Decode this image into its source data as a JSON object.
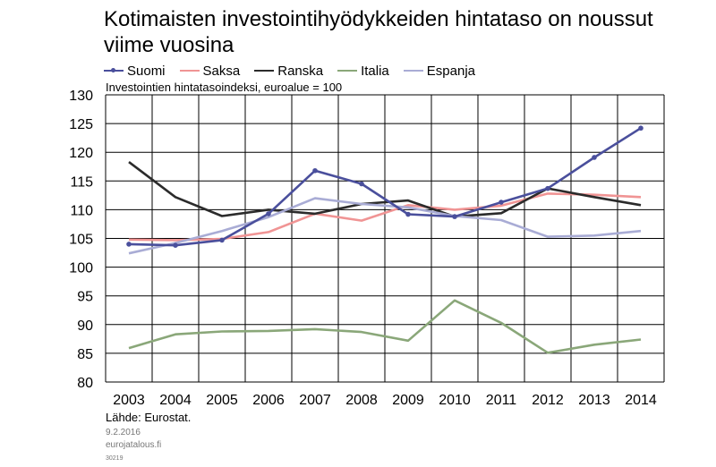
{
  "title": "Kotimaisten investointihyödykkeiden hintataso on noussut viime vuosina",
  "subtitle": "Investointien hintatasoindeksi, euroalue = 100",
  "source": "Lähde: Eurostat.",
  "date": "9.2.2016",
  "site": "eurojatalous.fi",
  "code": "30219",
  "chart_data": {
    "type": "line",
    "x": [
      "2003",
      "2004",
      "2005",
      "2006",
      "2007",
      "2008",
      "2009",
      "2010",
      "2011",
      "2012",
      "2013",
      "2014"
    ],
    "ylim": [
      80,
      130
    ],
    "yticks": [
      80,
      85,
      90,
      95,
      100,
      105,
      110,
      115,
      120,
      125,
      130
    ],
    "grid": true,
    "legend_position": "top",
    "series": [
      {
        "name": "Suomi",
        "color": "#4a4f9c",
        "markers": true,
        "values": [
          104.0,
          103.8,
          104.7,
          109.3,
          116.8,
          114.5,
          109.2,
          108.8,
          111.3,
          113.7,
          119.1,
          124.2
        ]
      },
      {
        "name": "Saksa",
        "color": "#f09494",
        "markers": false,
        "values": [
          104.8,
          104.7,
          104.9,
          106.1,
          109.3,
          108.1,
          110.8,
          110.0,
          110.7,
          112.8,
          112.6,
          112.2
        ]
      },
      {
        "name": "Ranska",
        "color": "#2b2b2b",
        "markers": false,
        "values": [
          118.3,
          112.2,
          108.9,
          110.0,
          109.3,
          111.0,
          111.6,
          108.8,
          109.4,
          113.7,
          112.2,
          110.8
        ]
      },
      {
        "name": "Italia",
        "color": "#8aa779",
        "markers": false,
        "values": [
          85.9,
          88.3,
          88.8,
          88.9,
          89.2,
          88.7,
          87.2,
          94.2,
          90.3,
          85.1,
          86.5,
          87.4
        ]
      },
      {
        "name": "Espanja",
        "color": "#a9acd5",
        "markers": false,
        "values": [
          102.4,
          104.2,
          106.3,
          108.7,
          112.0,
          111.0,
          110.4,
          108.9,
          108.2,
          105.3,
          105.5,
          106.3
        ]
      }
    ]
  }
}
